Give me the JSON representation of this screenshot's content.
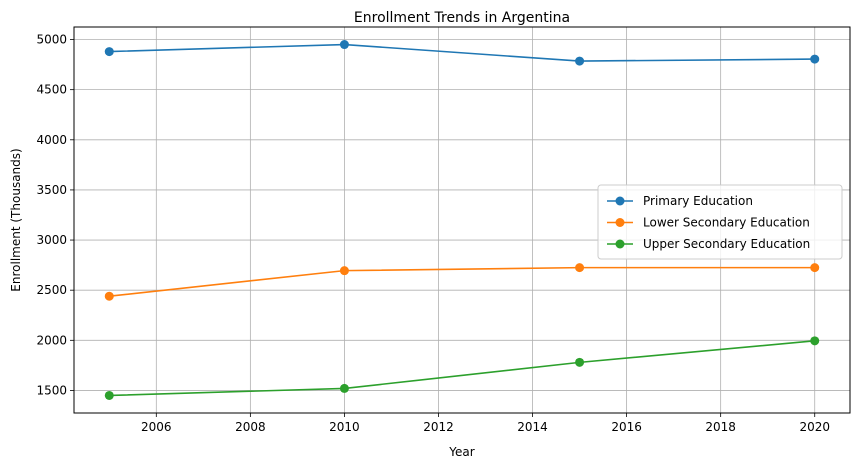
{
  "chart_data": {
    "type": "line",
    "title": "Enrollment Trends in Argentina",
    "xlabel": "Year",
    "ylabel": "Enrollment (Thousands)",
    "x": [
      2005,
      2010,
      2015,
      2020
    ],
    "xlim": [
      2004.25,
      2020.75
    ],
    "ylim": [
      1275,
      5125
    ],
    "xticks": [
      2006,
      2008,
      2010,
      2012,
      2014,
      2016,
      2018,
      2020
    ],
    "yticks": [
      1500,
      2000,
      2500,
      3000,
      3500,
      4000,
      4500,
      5000
    ],
    "grid": true,
    "legend_position": "center-right",
    "series": [
      {
        "name": "Primary Education",
        "color": "#1f77b4",
        "values": [
          4880,
          4950,
          4785,
          4805
        ]
      },
      {
        "name": "Lower Secondary Education",
        "color": "#ff7f0e",
        "values": [
          2440,
          2695,
          2725,
          2725
        ]
      },
      {
        "name": "Upper Secondary Education",
        "color": "#2ca02c",
        "values": [
          1450,
          1520,
          1780,
          1995
        ]
      }
    ]
  }
}
